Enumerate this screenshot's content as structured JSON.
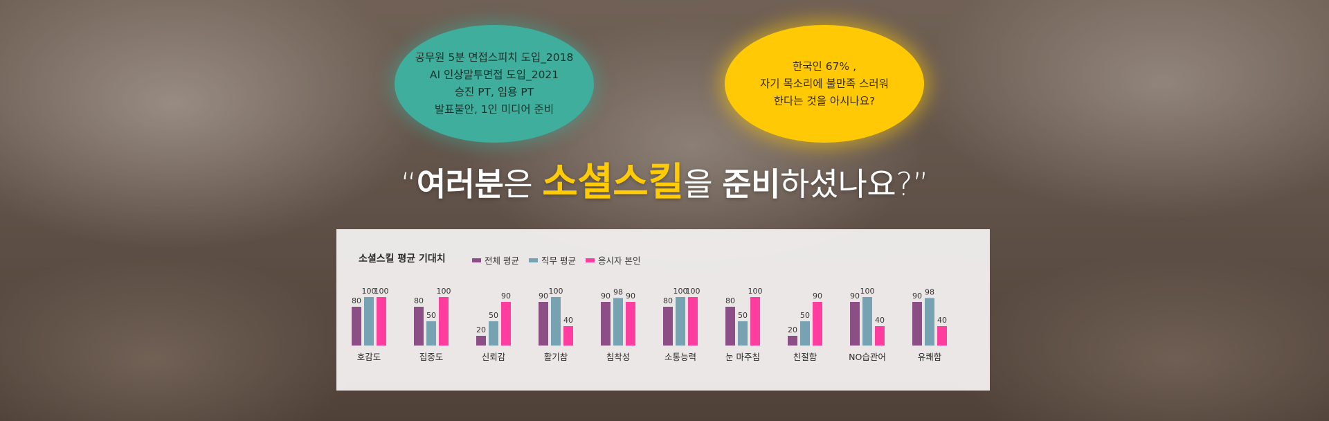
{
  "bubbles": {
    "green": {
      "color": "#3fae9c",
      "lines": [
        "공무원 5분 면접스피치 도입_2018",
        "AI 인상말투면접 도입_2021",
        "승진 PT, 임용 PT",
        "발표불안, 1인 미디어 준비"
      ]
    },
    "yellow": {
      "color": "#ffca05",
      "lines": [
        "한국인 67% ,",
        "자기 목소리에 불만족 스러워",
        "한다는 것을 아시나요?"
      ]
    }
  },
  "headline": {
    "open_quote": "“",
    "part1": "여러분",
    "part2": "은 ",
    "part3": "소셜스킬",
    "part4": "을 ",
    "part5": "준비",
    "part6": "하셨나요?",
    "close_quote": "”"
  },
  "chart_data": {
    "type": "bar",
    "title": "소셜스킬 평균 기대치",
    "categories": [
      "호감도",
      "집중도",
      "신뢰감",
      "활기참",
      "침착성",
      "소통능력",
      "눈 마주침",
      "친절함",
      "NO습관어",
      "유쾌함"
    ],
    "series": [
      {
        "name": "전체 평균",
        "color": "#8b4f86",
        "values": [
          80,
          80,
          20,
          90,
          90,
          80,
          80,
          20,
          90,
          90
        ]
      },
      {
        "name": "직무 평균",
        "color": "#77a2b2",
        "values": [
          100,
          50,
          50,
          100,
          98,
          100,
          50,
          50,
          100,
          98
        ]
      },
      {
        "name": "응시자 본인",
        "color": "#ff3d9e",
        "values": [
          100,
          100,
          90,
          40,
          90,
          100,
          100,
          90,
          40,
          40
        ]
      }
    ],
    "ylim": [
      0,
      100
    ],
    "grid": false,
    "legend_position": "top"
  }
}
